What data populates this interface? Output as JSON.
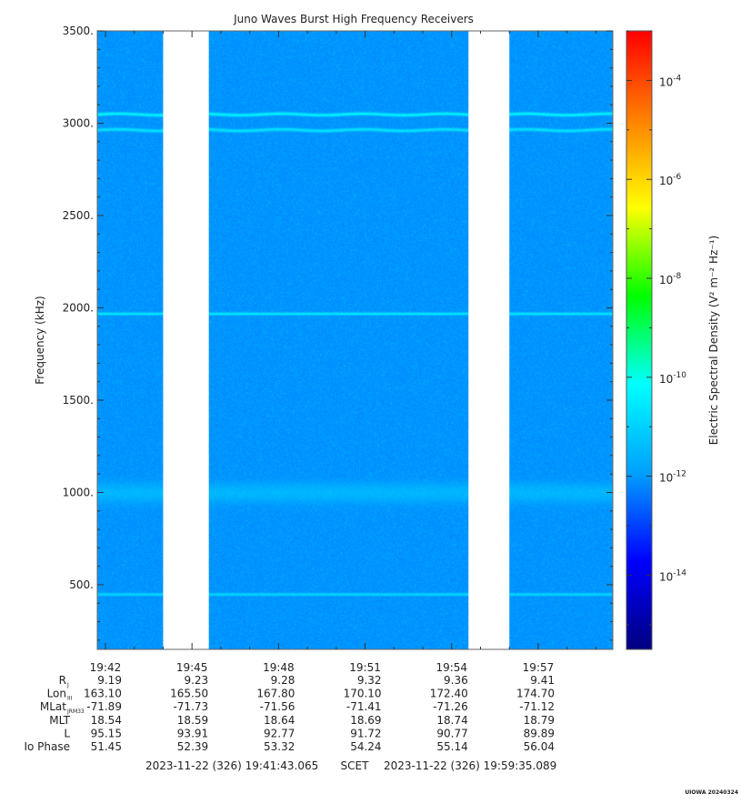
{
  "chart_data": {
    "type": "heatmap",
    "title": "Juno Waves Burst High Frequency Receivers",
    "ylabel": "Frequency (kHz)",
    "ylim": [
      150,
      3500
    ],
    "yticks": [
      500,
      1000,
      1500,
      2000,
      2500,
      3000,
      3500
    ],
    "ytick_labels": [
      "500.",
      "1000.",
      "1500.",
      "2000.",
      "2500.",
      "3000.",
      "3500."
    ],
    "time_window": [
      "19:41:43.065",
      "19:59:35.089"
    ],
    "xtick_labels": [
      "19:42",
      "19:45",
      "19:48",
      "19:51",
      "19:54",
      "19:57"
    ],
    "data_gaps": [
      [
        "19:44:00",
        "19:45:35"
      ],
      [
        "19:54:35",
        "19:56:00"
      ]
    ],
    "background_level_exp": -12.2,
    "emission_bands": [
      {
        "freq_khz": 3050,
        "level_exp": -10.3
      },
      {
        "freq_khz": 2965,
        "level_exp": -10.6
      },
      {
        "freq_khz": 1970,
        "level_exp": -10.5
      },
      {
        "freq_khz": 1000,
        "level_exp": -11.5
      },
      {
        "freq_khz": 450,
        "level_exp": -10.8
      }
    ],
    "colorbar": {
      "label": "Electric Spectral Density (V² m⁻² Hz⁻¹)",
      "scale": "log",
      "range_exp": [
        -15.5,
        -3.0
      ],
      "tick_exps": [
        -14,
        -12,
        -10,
        -8,
        -6,
        -4
      ],
      "tick_base": "10",
      "colors": [
        "#000080",
        "#0000ff",
        "#00a0ff",
        "#00ffff",
        "#00ff00",
        "#ffff00",
        "#ff8000",
        "#ff0000"
      ]
    },
    "ephemeris": {
      "rows": [
        {
          "label": "R",
          "sub": "J",
          "values": [
            "9.19",
            "9.23",
            "9.28",
            "9.32",
            "9.36",
            "9.41"
          ]
        },
        {
          "label": "Lon",
          "sub": "III",
          "values": [
            "163.10",
            "165.50",
            "167.80",
            "170.10",
            "172.40",
            "174.70"
          ]
        },
        {
          "label": "MLat",
          "sub": "JRM33",
          "values": [
            "-71.89",
            "-71.73",
            "-71.56",
            "-71.41",
            "-71.26",
            "-71.12"
          ]
        },
        {
          "label": "MLT",
          "sub": "",
          "values": [
            "18.54",
            "18.59",
            "18.64",
            "18.69",
            "18.74",
            "18.79"
          ]
        },
        {
          "label": "L",
          "sub": "",
          "values": [
            "95.15",
            "93.91",
            "92.77",
            "91.72",
            "90.77",
            "89.89"
          ]
        },
        {
          "label": "Io Phase",
          "sub": "",
          "values": [
            "51.45",
            "52.39",
            "53.32",
            "54.24",
            "55.14",
            "56.04"
          ]
        }
      ]
    }
  },
  "footer": {
    "start": "2023-11-22 (326) 19:41:43.065",
    "mid": "SCET",
    "end": "2023-11-22 (326) 19:59:35.089"
  },
  "credit": "UIOWA 20240324"
}
